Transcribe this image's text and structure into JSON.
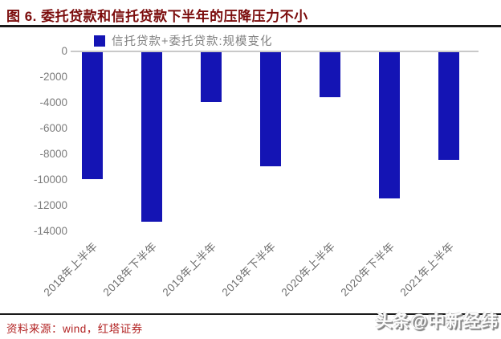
{
  "header": {
    "title": "图 6. 委托贷款和信托贷款下半年的压降压力不小"
  },
  "legend": {
    "label": "信托贷款+委托贷款:规模变化"
  },
  "chart_data": {
    "type": "bar",
    "title": "委托贷款和信托贷款下半年的压降压力不小",
    "categories": [
      "2018年上半年",
      "2018年下半年",
      "2019年上半年",
      "2019年下半年",
      "2020年上半年",
      "2020年下半年",
      "2021年上半年"
    ],
    "values": [
      -9900,
      -13200,
      -3900,
      -8900,
      -3500,
      -11350,
      -8350
    ],
    "series_name": "信托贷款+委托贷款:规模变化",
    "xlabel": "",
    "ylabel": "",
    "ylim": [
      -14000,
      0
    ],
    "yticks": [
      0,
      -2000,
      -4000,
      -6000,
      -8000,
      -10000,
      -12000,
      -14000
    ],
    "grid": "zero-line-only",
    "legend_position": "top-center"
  },
  "footer": {
    "source": "资料来源：wind，红塔证券",
    "watermark": "头条@中新经纬"
  },
  "colors": {
    "bar": "#1414b4",
    "title_text": "#7b0c0c",
    "source_text": "#b22222",
    "axis_text": "#7c7c7c",
    "zero_line": "#c9c9c9",
    "rule": "#1a1a1a"
  }
}
